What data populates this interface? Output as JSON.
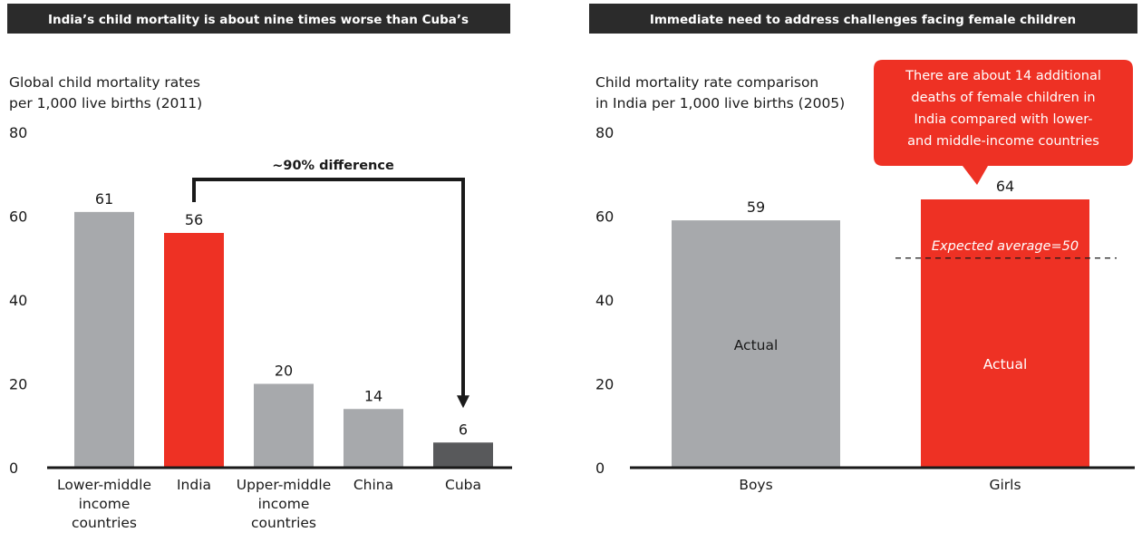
{
  "chart_data": [
    {
      "type": "bar",
      "title": "India’s child mortality is about nine times worse than Cuba’s",
      "subtitle": [
        "Global child mortality rates",
        "per 1,000 live births (2011)"
      ],
      "ylim": [
        0,
        80
      ],
      "yticks": [
        "0",
        "20",
        "40",
        "60",
        "80"
      ],
      "categories": [
        [
          "Lower-middle",
          "income",
          "countries"
        ],
        [
          "India"
        ],
        [
          "Upper-middle",
          "income",
          "countries"
        ],
        [
          "China"
        ],
        [
          "Cuba"
        ]
      ],
      "values": [
        61,
        56,
        20,
        14,
        6
      ],
      "value_labels": [
        "61",
        "56",
        "20",
        "14",
        "6"
      ],
      "bar_colors": [
        "#a7a9ac",
        "#ee3124",
        "#a7a9ac",
        "#a7a9ac",
        "#58595b"
      ],
      "annotation": "~90% difference"
    },
    {
      "type": "bar",
      "title": "Immediate need to address challenges facing female children",
      "subtitle": [
        "Child mortality rate comparison",
        "in India per 1,000 live births (2005)"
      ],
      "ylim": [
        0,
        80
      ],
      "yticks": [
        "0",
        "20",
        "40",
        "60",
        "80"
      ],
      "categories": [
        "Boys",
        "Girls"
      ],
      "values": [
        59,
        64
      ],
      "value_labels": [
        "59",
        "64"
      ],
      "bar_colors": [
        "#a7a9ac",
        "#ee3124"
      ],
      "bar_labels": [
        "Actual",
        "Actual"
      ],
      "expected_average": 50,
      "expected_label": "Expected average=50",
      "callout": [
        "There are about 14 additional",
        "deaths of female children in",
        "India compared with lower-",
        "and middle-income countries"
      ]
    }
  ]
}
